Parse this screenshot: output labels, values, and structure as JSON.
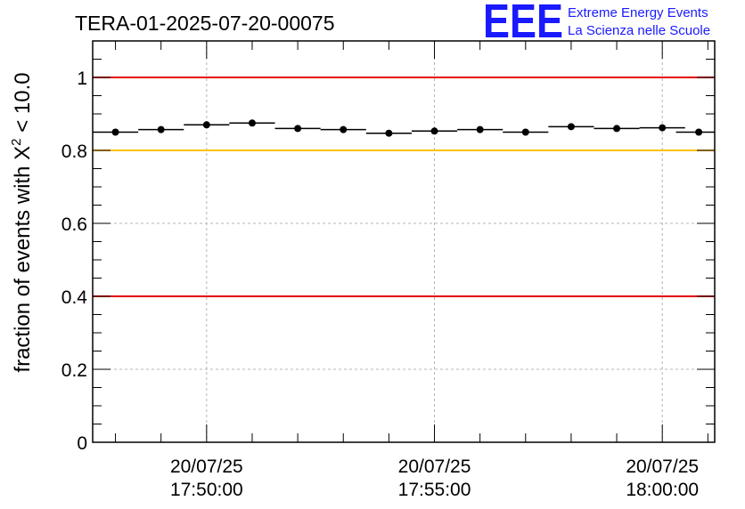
{
  "chart_data": {
    "type": "scatter",
    "title": "TERA-01-2025-07-20-00075",
    "ylabel_prefix": "fraction of events with ",
    "ylabel_symbol": "X",
    "ylabel_sup": "2",
    "ylabel_suffix": " < 10.0",
    "xlabel": "",
    "ylim": [
      0,
      1.1
    ],
    "yticks": [
      0,
      0.2,
      0.4,
      0.6,
      0.8,
      1
    ],
    "ytick_labels": [
      "0",
      "0.2",
      "0.4",
      "0.6",
      "0.8",
      "1"
    ],
    "xlim_minutes": [
      0,
      13.65
    ],
    "xticks": [
      {
        "minute": 2.5,
        "date": "20/07/25",
        "time": "17:50:00"
      },
      {
        "minute": 7.5,
        "date": "20/07/25",
        "time": "17:55:00"
      },
      {
        "minute": 12.5,
        "date": "20/07/25",
        "time": "18:00:00"
      }
    ],
    "series": [
      {
        "name": "fraction",
        "bin_width_minutes": 1,
        "x": [
          0.5,
          1.5,
          2.5,
          3.5,
          4.5,
          5.5,
          6.5,
          7.5,
          8.5,
          9.5,
          10.5,
          11.5,
          12.5,
          13.3
        ],
        "values": [
          0.85,
          0.857,
          0.87,
          0.875,
          0.86,
          0.857,
          0.847,
          0.853,
          0.857,
          0.85,
          0.865,
          0.86,
          0.862,
          0.85
        ]
      }
    ],
    "reference_lines": [
      {
        "y": 1.0,
        "color": "#e60000"
      },
      {
        "y": 0.8,
        "color": "#ffc000"
      },
      {
        "y": 0.4,
        "color": "#e60000"
      }
    ],
    "grid": true
  },
  "logo": {
    "mark": "EEE",
    "line1": "Extreme Energy Events",
    "line2": "La Scienza nelle Scuole"
  }
}
